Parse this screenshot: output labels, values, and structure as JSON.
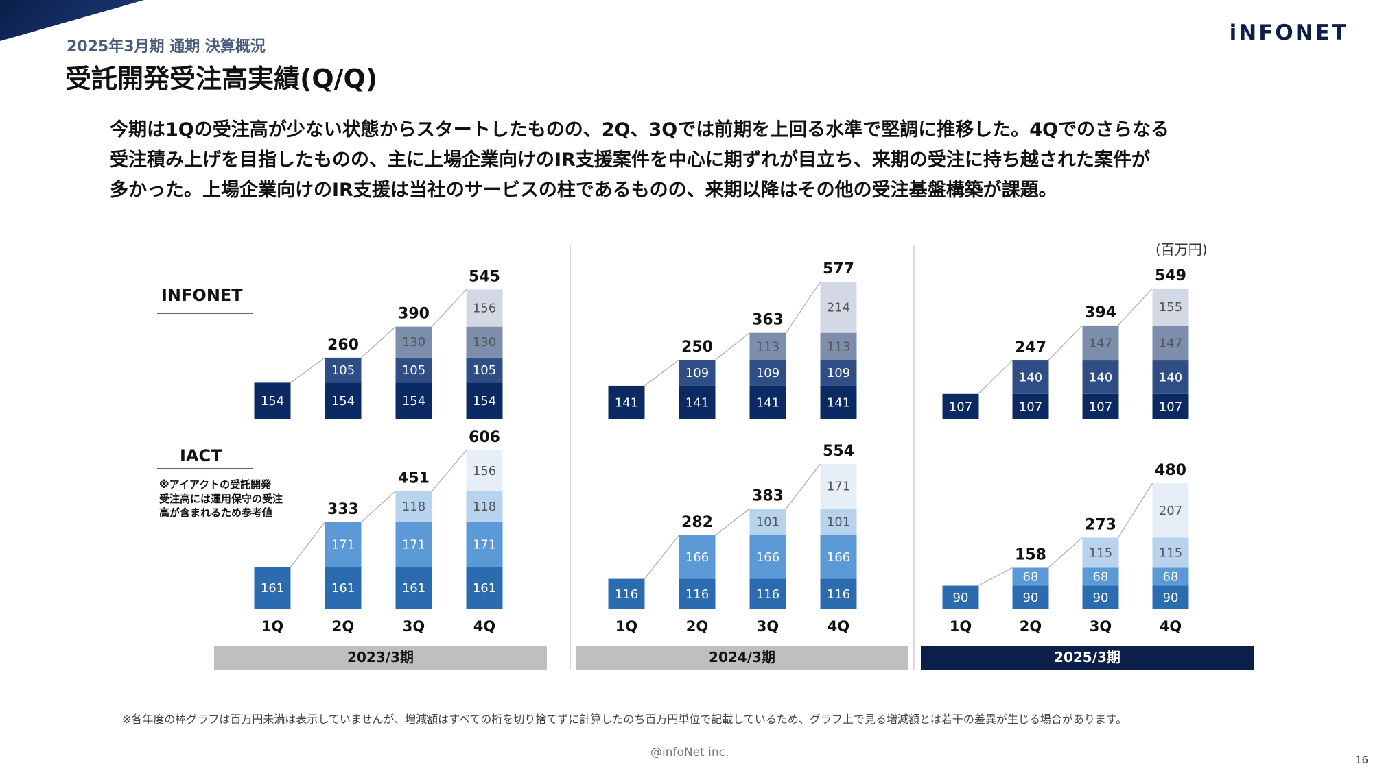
{
  "header": {
    "subtitle": "2025年3月期 通期 決算概況",
    "title": "受託開発受注高実績(Q/Q)",
    "logo": "iNFONET"
  },
  "summary": {
    "line1": "今期は1Qの受注高が少ない状態からスタートしたものの、2Q、3Qでは前期を上回る水準で堅調に推移した。4Qでのさらなる",
    "line2": "受注積み上げを目指したものの、主に上場企業向けのIR支援案件を中心に期ずれが目立ち、来期の受注に持ち越された案件が",
    "line3": "多かった。上場企業向けのIR支援は当社のサービスの柱であるものの、来期以降はその他の受注基盤構築が課題。"
  },
  "unit_label": "(百万円)",
  "footnote": "※各年度の棒グラフは百万円未満は表示していませんが、増減額はすべての桁を切り捨てずに計算したのち百万円単位で記載しているため、グラフ上で見る増減額とは若干の差異が生じる場合があります。",
  "copyright": "@infoNet inc.",
  "page_number": "16",
  "colors": {
    "infonet": [
      "#0b2a63",
      "#2f4e86",
      "#7d8eac",
      "#d3d9e4"
    ],
    "iact": [
      "#2b6cb0",
      "#5b9ad6",
      "#b7d3ee",
      "#e6eff8"
    ],
    "label_dark": "#ffffff",
    "label_light": "#555555",
    "year_bar_gray": "#bfbfbf",
    "year_bar_current": "#0b1f4a"
  },
  "chart_data": {
    "type": "bar",
    "stacked": true,
    "quarters": [
      "1Q",
      "2Q",
      "3Q",
      "4Q"
    ],
    "periods": [
      "2023/3期",
      "2024/3期",
      "2025/3期"
    ],
    "current_period": "2025/3期",
    "series_labels": {
      "infonet": "INFONET",
      "iact": "IACT",
      "iact_note_line1": "※アイアクトの受託開発",
      "iact_note_line2": "受注高には運用保守の受注",
      "iact_note_line3": "高が含まれるため参考値"
    },
    "infonet": [
      {
        "increments": [
          154,
          105,
          130,
          156
        ],
        "totals": [
          154,
          260,
          390,
          545
        ]
      },
      {
        "increments": [
          141,
          109,
          113,
          214
        ],
        "totals": [
          141,
          250,
          363,
          577
        ]
      },
      {
        "increments": [
          107,
          140,
          147,
          155
        ],
        "totals": [
          107,
          247,
          394,
          549
        ]
      }
    ],
    "iact": [
      {
        "increments": [
          161,
          171,
          118,
          156
        ],
        "totals": [
          161,
          333,
          451,
          606
        ]
      },
      {
        "increments": [
          116,
          166,
          101,
          171
        ],
        "totals": [
          116,
          282,
          383,
          554
        ]
      },
      {
        "increments": [
          90,
          68,
          115,
          207
        ],
        "totals": [
          90,
          158,
          273,
          480
        ]
      }
    ]
  }
}
